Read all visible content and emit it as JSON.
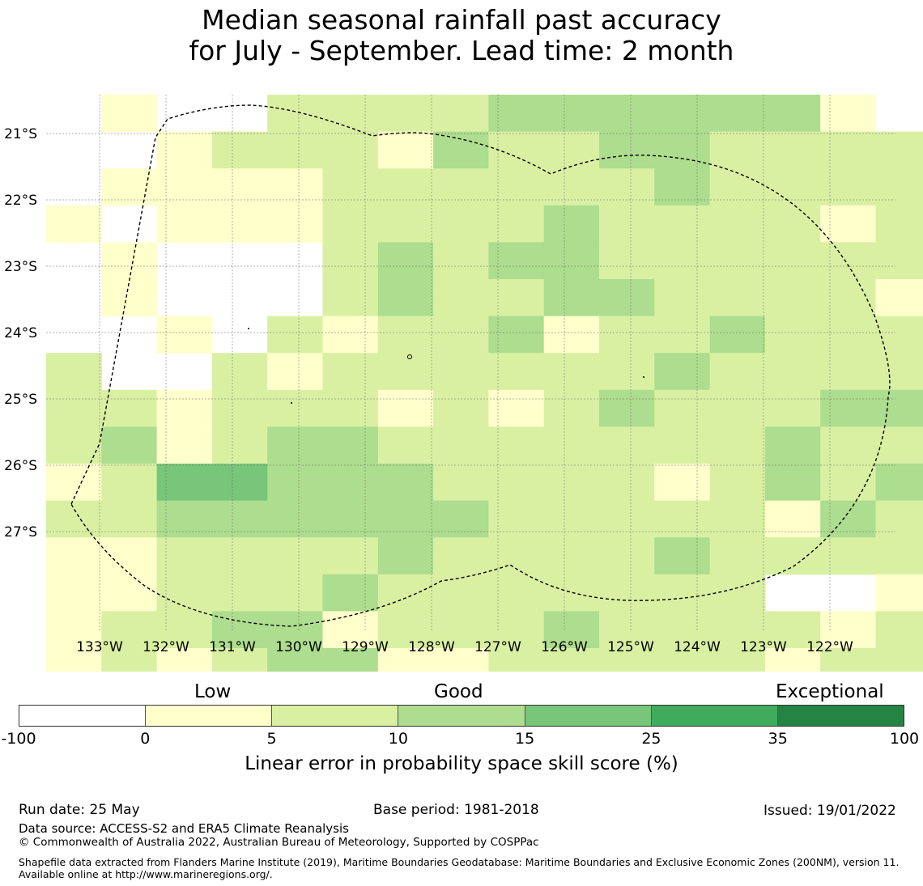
{
  "title_line1": "Median seasonal rainfall past accuracy",
  "title_line2": "for July - September. Lead time: 2 month",
  "map": {
    "lat_labels": [
      "21°S",
      "22°S",
      "23°S",
      "24°S",
      "25°S",
      "26°S",
      "27°S"
    ],
    "lon_labels": [
      "133°W",
      "132°W",
      "131°W",
      "130°W",
      "129°W",
      "128°W",
      "127°W",
      "126°W",
      "125°W",
      "124°W",
      "123°W",
      "122°W"
    ],
    "grid_class_rows": [
      "_1__22223333331__",
      "__1222132233222211",
      "_11112222223222212221",
      "1_111222232222122222",
      "_1___23233222222_22_",
      "_1___232233222212_1",
      "__1_212231223222211",
      "2__21222222322222321",
      "221222121232223333332",
      "231233222222232233232",
      "1244333222212323333",
      "22333333222221323333",
      "11222232222322222_333",
      "1122232222222__11223",
      "1223312223222212221",
      "12123311222221223333"
    ]
  },
  "legend": {
    "category_low": "Low",
    "category_good": "Good",
    "category_exceptional": "Exceptional",
    "ticks": [
      "-100",
      "0",
      "5",
      "10",
      "15",
      "25",
      "35",
      "100"
    ],
    "colors": [
      "#ffffff",
      "#ffffcc",
      "#d9f0a3",
      "#addd8e",
      "#78c679",
      "#41ab5d",
      "#238443"
    ],
    "label": "Linear error in probability space skill score (%)"
  },
  "footer": {
    "run_date": "Run date: 25 May",
    "base_period": "Base period: 1981-2018",
    "issued": "Issued: 19/01/2022",
    "data_source": "Data source: ACCESS-S2 and ERA5 Climate Reanalysis",
    "copyright": "© Commonwealth of Australia 2022, Australian Bureau of Meteorology, Supported by COSPPac",
    "shapefile_note": "Shapefile data extracted from Flanders Marine Institute (2019), Maritime Boundaries Geodatabase: Maritime Boundaries and Exclusive Economic Zones (200NM), version 11. Available online at http://www.marineregions.org/."
  }
}
